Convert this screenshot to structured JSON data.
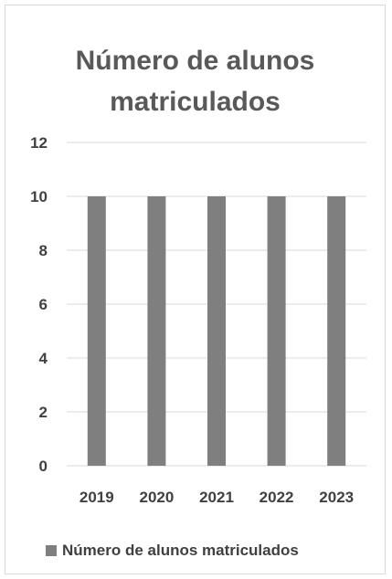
{
  "chart_data": {
    "type": "bar",
    "title": "Número de alunos matriculados",
    "categories": [
      "2019",
      "2020",
      "2021",
      "2022",
      "2023"
    ],
    "series": [
      {
        "name": "Número de alunos matriculados",
        "values": [
          10,
          10,
          10,
          10,
          10
        ],
        "color": "#7f7f7f"
      }
    ],
    "xlabel": "",
    "ylabel": "",
    "ylim": [
      0,
      12
    ],
    "yticks": [
      "0",
      "2",
      "4",
      "6",
      "8",
      "10",
      "12"
    ],
    "grid": true,
    "legend_position": "bottom",
    "gridline_color": "#d9d9d9"
  }
}
